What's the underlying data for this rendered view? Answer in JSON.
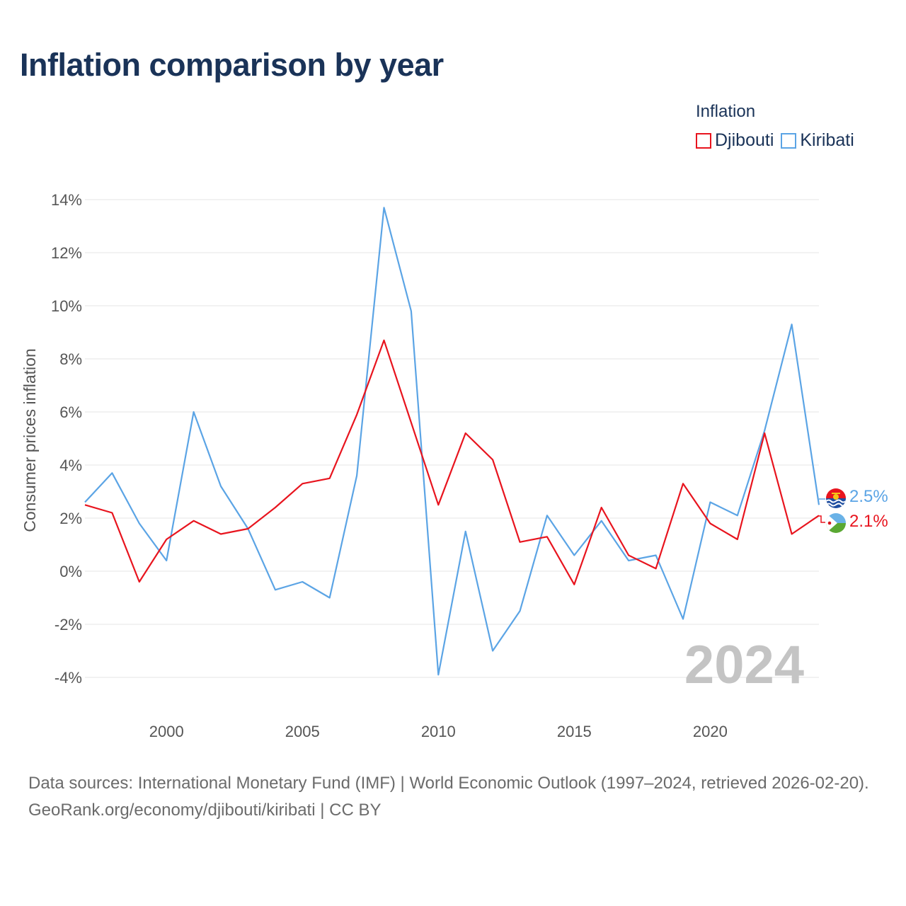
{
  "title": "Inflation comparison by year",
  "legend": {
    "title": "Inflation",
    "items": [
      {
        "label": "Djibouti",
        "color": "#e8141e"
      },
      {
        "label": "Kiribati",
        "color": "#5ba4e5"
      }
    ]
  },
  "footer": {
    "source": "Data sources: International Monetary Fund (IMF) | World Economic Outlook (1997–2024, retrieved 2026-02-20).",
    "credit": "GeoRank.org/economy/djibouti/kiribati | CC BY"
  },
  "chart_data": {
    "type": "line",
    "title": "Inflation comparison by year",
    "xlabel": "",
    "ylabel": "Consumer prices inflation",
    "x": [
      1997,
      1998,
      1999,
      2000,
      2001,
      2002,
      2003,
      2004,
      2005,
      2006,
      2007,
      2008,
      2009,
      2010,
      2011,
      2012,
      2013,
      2014,
      2015,
      2016,
      2017,
      2018,
      2019,
      2020,
      2021,
      2022,
      2023,
      2024
    ],
    "xlim": [
      1997,
      2024
    ],
    "ylim": [
      -4,
      14
    ],
    "x_ticks": [
      2000,
      2005,
      2010,
      2015,
      2020
    ],
    "y_ticks": [
      -4,
      -2,
      0,
      2,
      4,
      6,
      8,
      10,
      12,
      14
    ],
    "y_tick_labels": [
      "-4%",
      "-2%",
      "0%",
      "2%",
      "4%",
      "6%",
      "8%",
      "10%",
      "12%",
      "14%"
    ],
    "grid": true,
    "watermark_year": "2024",
    "series": [
      {
        "name": "Djibouti",
        "color": "#e8141e",
        "end_label": "2.1%",
        "values": [
          2.5,
          2.2,
          -0.4,
          1.2,
          1.9,
          1.4,
          1.6,
          2.4,
          3.3,
          3.5,
          5.9,
          8.7,
          5.6,
          2.5,
          5.2,
          4.2,
          1.1,
          1.3,
          -0.5,
          2.4,
          0.6,
          0.1,
          3.3,
          1.8,
          1.2,
          5.2,
          1.4,
          2.1
        ]
      },
      {
        "name": "Kiribati",
        "color": "#5ba4e5",
        "end_label": "2.5%",
        "values": [
          2.6,
          3.7,
          1.8,
          0.4,
          6.0,
          3.2,
          1.6,
          -0.7,
          -0.4,
          -1.0,
          3.6,
          13.7,
          9.8,
          -3.9,
          1.5,
          -3.0,
          -1.5,
          2.1,
          0.6,
          1.9,
          0.4,
          0.6,
          -1.8,
          2.6,
          2.1,
          5.3,
          9.3,
          2.5
        ]
      }
    ]
  }
}
